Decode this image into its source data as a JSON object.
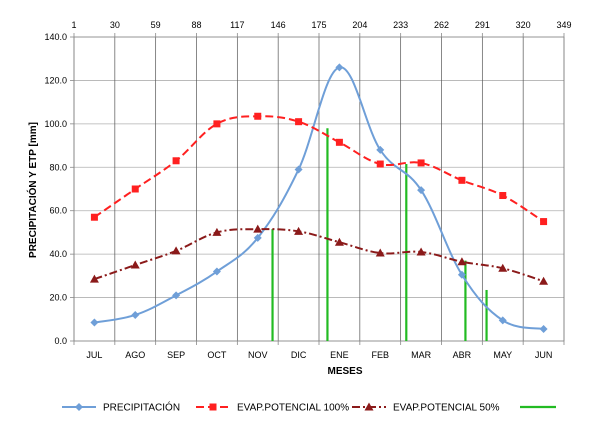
{
  "chart_data": {
    "type": "line",
    "title": "",
    "xlabel": "MESES",
    "ylabel": "PRECIPITACIÓN Y ETP [mm]",
    "ylim": [
      0,
      140
    ],
    "y_ticks": [
      "0.0",
      "20.0",
      "40.0",
      "60.0",
      "80.0",
      "100.0",
      "120.0",
      "140.0"
    ],
    "y_tick_values": [
      0,
      20,
      40,
      60,
      80,
      100,
      120,
      140
    ],
    "categories": [
      "JUL",
      "AGO",
      "SEP",
      "OCT",
      "NOV",
      "DIC",
      "ENE",
      "FEB",
      "MAR",
      "ABR",
      "MAY",
      "JUN"
    ],
    "secondary_x_ticks": [
      "1",
      "30",
      "59",
      "88",
      "117",
      "146",
      "175",
      "204",
      "233",
      "262",
      "291",
      "320",
      "349"
    ],
    "secondary_x_values": [
      1,
      30,
      59,
      88,
      117,
      146,
      175,
      204,
      233,
      262,
      291,
      320,
      349
    ],
    "secondary_xlim": [
      1,
      349
    ],
    "grid": true,
    "legend_position": "bottom",
    "series": [
      {
        "name": "PRECIPITACIÓN",
        "color": "#6f9fd8",
        "dash": "",
        "marker": "diamond",
        "values": [
          8.5,
          12.0,
          21.0,
          32.0,
          47.5,
          79.0,
          126.0,
          88.0,
          69.5,
          30.5,
          9.5,
          5.5
        ]
      },
      {
        "name": "EVAP.POTENCIAL 100%",
        "color": "#ff2020",
        "dash": "8,4",
        "marker": "square",
        "values": [
          57.0,
          70.0,
          83.0,
          100.0,
          103.5,
          101.0,
          91.5,
          81.5,
          82.0,
          74.0,
          67.0,
          55.0
        ]
      },
      {
        "name": "EVAP.POTENCIAL 50%",
        "color": "#8b1a1a",
        "dash": "8,3,2,3",
        "marker": "triangle",
        "values": [
          28.5,
          35.0,
          41.5,
          50.0,
          51.5,
          50.5,
          45.5,
          40.5,
          41.0,
          36.5,
          33.5,
          27.5
        ]
      }
    ],
    "vertical_lines": {
      "name": "",
      "color": "#22bb22",
      "positions": [
        {
          "x_day": 142,
          "top": 51.5
        },
        {
          "x_day": 181,
          "top": 98.0
        },
        {
          "x_day": 237,
          "top": 81.5
        },
        {
          "x_day": 279,
          "top": 37.0
        },
        {
          "x_day": 294,
          "top": 23.5
        }
      ]
    }
  }
}
